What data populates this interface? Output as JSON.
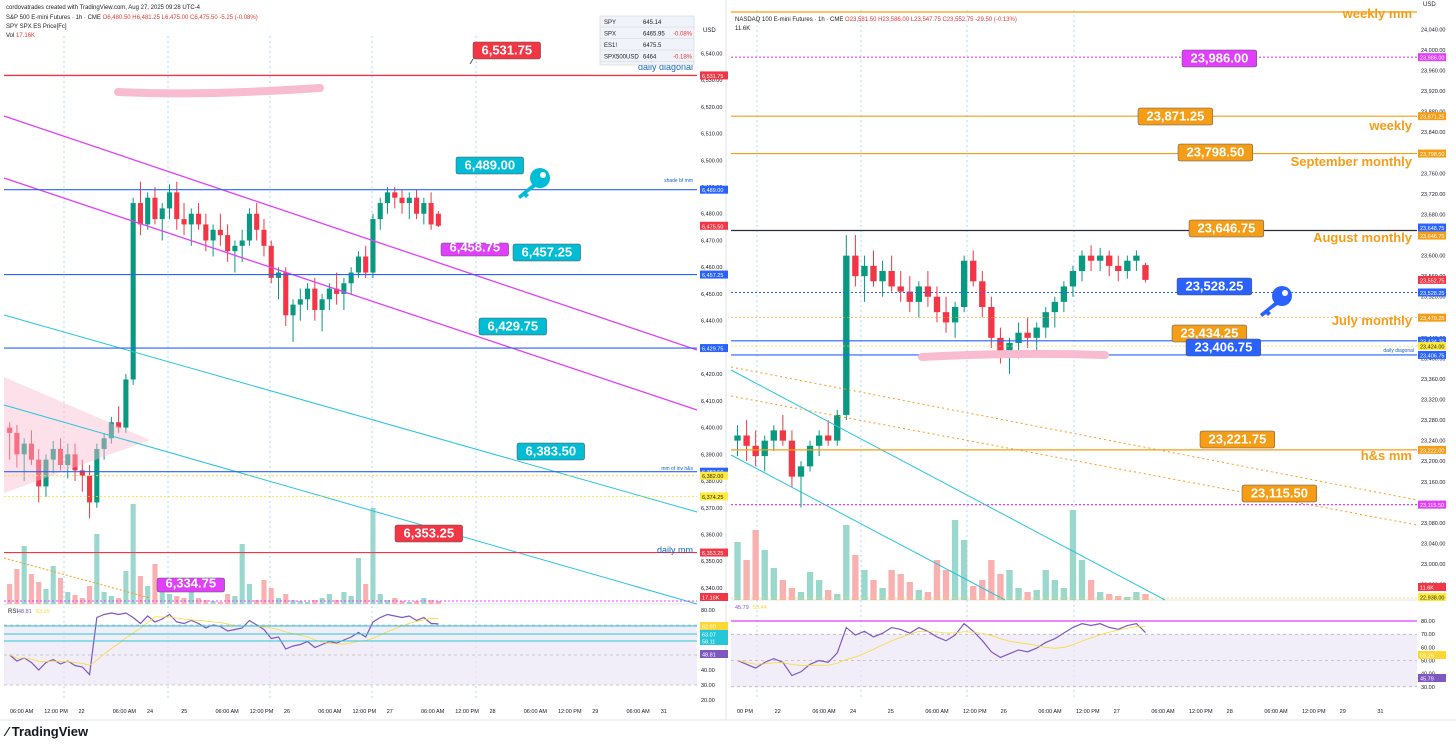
{
  "header": {
    "credit": "cordovatrades created with TradingView.com, Aug 27, 2025 09:28 UTC-4",
    "footer_brand": "TradingView"
  },
  "colors": {
    "magenta": "#e040fb",
    "orange": "#f59d16",
    "blue": "#2962ff",
    "cyan": "#00bcd4",
    "red": "#f23645",
    "up": "#089981",
    "down": "#f23645",
    "rsi": "#7e57c2"
  },
  "left": {
    "title_line1": "S&P 500 E-mini Futures · 1h · CME",
    "ohlc": "O6,480.50 H6,481.25 L6,475.00 C6,475.50 -5.25 (-0.08%)",
    "title_line2": "SPY SPX ES Price[Fc]",
    "vol_label": "Vol",
    "vol_value": "17.16K",
    "watch_table": [
      {
        "sym": "SPY",
        "price": "645.14",
        "chg": ""
      },
      {
        "sym": "SPX",
        "price": "6465.95",
        "chg": "-0.08%"
      },
      {
        "sym": "ES1!",
        "price": "6475.5",
        "chg": ""
      },
      {
        "sym": "SPX500USD",
        "price": "6464",
        "chg": "-0.18%"
      }
    ],
    "price_axis": [
      "6,540.00",
      "6,530.00",
      "6,520.00",
      "6,510.00",
      "6,500.00",
      "6,490.00",
      "6,480.00",
      "6,470.00",
      "6,460.00",
      "6,450.00",
      "6,440.00",
      "6,430.00",
      "6,420.00",
      "6,410.00",
      "6,400.00",
      "6,390.00",
      "6,380.00",
      "6,370.00",
      "6,360.00",
      "6,350.00",
      "6,340.00"
    ],
    "axis_tags": [
      {
        "text": "6,531.75",
        "value": 6531.75,
        "color": "#f23645"
      },
      {
        "text": "6,489.00",
        "value": 6489.0,
        "color": "#2962ff"
      },
      {
        "text": "6,475.50",
        "value": 6475.5,
        "color": "#f23645"
      },
      {
        "text": "6,457.25",
        "value": 6457.25,
        "color": "#2962ff"
      },
      {
        "text": "6,429.75",
        "value": 6429.75,
        "color": "#2962ff"
      },
      {
        "text": "6,383.50",
        "value": 6383.5,
        "color": "#2962ff"
      },
      {
        "text": "6,382.00",
        "value": 6382.0,
        "color": "#ffeb3b"
      },
      {
        "text": "6,374.25",
        "value": 6374.25,
        "color": "#ffeb3b"
      },
      {
        "text": "6,353.25",
        "value": 6353.25,
        "color": "#f23645"
      },
      {
        "text": "17.16K",
        "value": 6334.0,
        "color": "#f23645"
      }
    ],
    "callouts": [
      {
        "text": "6,531.75",
        "value": 6531.75,
        "color": "#f23645"
      },
      {
        "text": "6,489.00",
        "value": 6489.0,
        "color": "#00bcd4"
      },
      {
        "text": "6,458.75",
        "value": 6458.75,
        "color": "#e040fb"
      },
      {
        "text": "6,457.25",
        "value": 6457.25,
        "color": "#00bcd4"
      },
      {
        "text": "6,429.75",
        "value": 6429.75,
        "color": "#00bcd4"
      },
      {
        "text": "6,383.50",
        "value": 6383.5,
        "color": "#00bcd4"
      },
      {
        "text": "6,353.25",
        "value": 6353.25,
        "color": "#f23645"
      },
      {
        "text": "6,334.75",
        "value": 6334.75,
        "color": "#e040fb"
      }
    ],
    "line_labels": {
      "daily_diagonal": "daily diagonal",
      "shade_bf_mm": "shade bf mm",
      "mm_of_inv_hs": "mm of inv h&s",
      "daily_mm": "daily mm"
    },
    "rsi_header": {
      "label": "RSI",
      "v1": "48.81",
      "v2": "53.29"
    },
    "rsi_axis": [
      "80.00",
      "70.00",
      "60.00",
      "50.00",
      "40.00",
      "30.00",
      "20.00"
    ],
    "rsi_tags": [
      "62.90",
      "63.07",
      "58.11",
      "48.81"
    ],
    "time_axis": [
      "06:00 AM",
      "12:00 PM",
      "22",
      "06:00 AM",
      "24",
      "25",
      "06:00 AM",
      "12:00 PM",
      "26",
      "06:00 AM",
      "12:00 PM",
      "27",
      "06:00 AM",
      "12:00 PM",
      "28",
      "06:00 AM",
      "12:00 PM",
      "29",
      "06:00 AM",
      "31"
    ],
    "currency": "USD"
  },
  "right": {
    "title_line1": "NASDAQ 100 E-mini Futures · 1h · CME",
    "ohlc": "O23,581.50 H23,586.00 L23,547.75 C23,552.75 -29.50 (-0.13%)",
    "vol_value": "11.6K",
    "price_axis": [
      "24,040.00",
      "24,000.00",
      "23,960.00",
      "23,920.00",
      "23,880.00",
      "23,840.00",
      "23,800.00",
      "23,760.00",
      "23,720.00",
      "23,680.00",
      "23,640.00",
      "23,600.00",
      "23,560.00",
      "23,520.00",
      "23,480.00",
      "23,440.00",
      "23,400.00",
      "23,360.00",
      "23,320.00",
      "23,280.00",
      "23,240.00",
      "23,200.00",
      "23,160.00",
      "23,120.00",
      "23,080.00",
      "23,040.00",
      "23,000.00",
      "22,960.00"
    ],
    "axis_tags": [
      {
        "text": "23,986.00",
        "value": 23986.0,
        "color": "#e040fb"
      },
      {
        "text": "23,871.25",
        "value": 23871.25,
        "color": "#f59d16"
      },
      {
        "text": "23,798.50",
        "value": 23798.5,
        "color": "#f59d16"
      },
      {
        "text": "23,648.75",
        "value": 23648.75,
        "color": "#2962ff"
      },
      {
        "text": "23,646.75",
        "value": 23646.75,
        "color": "#f59d16"
      },
      {
        "text": "23,552.75",
        "value": 23552.75,
        "color": "#f23645"
      },
      {
        "text": "23,528.25",
        "value": 23528.25,
        "color": "#2962ff"
      },
      {
        "text": "23,479.25",
        "value": 23479.25,
        "color": "#f59d16"
      },
      {
        "text": "23,434.25",
        "value": 23434.25,
        "color": "#2962ff"
      },
      {
        "text": "23,424.00",
        "value": 23424.0,
        "color": "#ffeb3b"
      },
      {
        "text": "23,406.75",
        "value": 23406.75,
        "color": "#2962ff"
      },
      {
        "text": "23,222.00",
        "value": 23222.0,
        "color": "#f59d16"
      },
      {
        "text": "23,115.50",
        "value": 23115.5,
        "color": "#e040fb"
      },
      {
        "text": "11.6K",
        "value": 22968.0,
        "color": "#f23645"
      },
      {
        "text": "22,938.00",
        "value": 22938.0,
        "color": "#ffeb3b"
      }
    ],
    "callouts": [
      {
        "text": "23,986.00",
        "value": 23986.0,
        "color": "#e040fb"
      },
      {
        "text": "23,871.25",
        "value": 23871.25,
        "color": "#f59d16"
      },
      {
        "text": "23,798.50",
        "value": 23798.5,
        "color": "#f59d16"
      },
      {
        "text": "23,646.75",
        "value": 23646.75,
        "color": "#f59d16"
      },
      {
        "text": "23,528.25",
        "value": 23528.25,
        "color": "#2962ff"
      },
      {
        "text": "23,434.25",
        "value": 23434.25,
        "color": "#f59d16"
      },
      {
        "text": "23,406.75",
        "value": 23406.75,
        "color": "#2962ff"
      },
      {
        "text": "23,221.75",
        "value": 23221.75,
        "color": "#f59d16"
      },
      {
        "text": "23,115.50",
        "value": 23115.5,
        "color": "#f59d16"
      }
    ],
    "line_labels": {
      "weekly_mm": "weekly mm",
      "weekly": "weekly",
      "september_monthly": "September monthly",
      "august_monthly": "August monthly",
      "july_monthly": "July monthly",
      "daily_diagonal": "daily diagonal",
      "hs_mm": "h&s mm"
    },
    "rsi_header": {
      "v1": "45.79",
      "v2": "53.44"
    },
    "rsi_axis": [
      "80.00",
      "70.00",
      "60.00",
      "50.00",
      "40.00",
      "30.00"
    ],
    "rsi_tags": [
      "59.26",
      "45.79"
    ],
    "time_axis": [
      "00 PM",
      "22",
      "06:00 AM",
      "24",
      "25",
      "06:00 AM",
      "12:00 PM",
      "26",
      "06:00 AM",
      "12:00 PM",
      "27",
      "06:00 AM",
      "12:00 PM",
      "28",
      "06:00 AM",
      "12:00 PM",
      "29",
      "31"
    ],
    "currency": "USD"
  },
  "chart_data": [
    {
      "type": "candlestick",
      "title": "S&P 500 E-mini Futures · 1h · CME",
      "ylim": [
        6334,
        6545
      ],
      "ohlc": [
        [
          6400,
          6402,
          6388,
          6398
        ],
        [
          6398,
          6401,
          6385,
          6390
        ],
        [
          6390,
          6396,
          6380,
          6394
        ],
        [
          6394,
          6399,
          6386,
          6388
        ],
        [
          6388,
          6392,
          6372,
          6378
        ],
        [
          6378,
          6390,
          6374,
          6388
        ],
        [
          6388,
          6395,
          6383,
          6392
        ],
        [
          6392,
          6396,
          6384,
          6386
        ],
        [
          6386,
          6394,
          6381,
          6390
        ],
        [
          6390,
          6394,
          6380,
          6384
        ],
        [
          6384,
          6388,
          6376,
          6382
        ],
        [
          6382,
          6386,
          6366,
          6372
        ],
        [
          6372,
          6394,
          6370,
          6392
        ],
        [
          6392,
          6398,
          6388,
          6396
        ],
        [
          6396,
          6404,
          6394,
          6402
        ],
        [
          6402,
          6408,
          6398,
          6400
        ],
        [
          6400,
          6420,
          6398,
          6418
        ],
        [
          6418,
          6486,
          6416,
          6484
        ],
        [
          6484,
          6492,
          6472,
          6476
        ],
        [
          6476,
          6488,
          6474,
          6486
        ],
        [
          6486,
          6490,
          6476,
          6478
        ],
        [
          6478,
          6484,
          6470,
          6482
        ],
        [
          6482,
          6491,
          6478,
          6488
        ],
        [
          6488,
          6492,
          6474,
          6478
        ],
        [
          6478,
          6484,
          6472,
          6476
        ],
        [
          6476,
          6482,
          6468,
          6480
        ],
        [
          6480,
          6484,
          6474,
          6476
        ],
        [
          6476,
          6480,
          6466,
          6470
        ],
        [
          6470,
          6476,
          6464,
          6474
        ],
        [
          6474,
          6480,
          6468,
          6472
        ],
        [
          6472,
          6476,
          6462,
          6466
        ],
        [
          6466,
          6470,
          6458,
          6468
        ],
        [
          6468,
          6474,
          6462,
          6470
        ],
        [
          6470,
          6482,
          6468,
          6480
        ],
        [
          6480,
          6484,
          6470,
          6474
        ],
        [
          6474,
          6478,
          6464,
          6468
        ],
        [
          6468,
          6470,
          6454,
          6456
        ],
        [
          6456,
          6460,
          6448,
          6458
        ],
        [
          6458,
          6460,
          6438,
          6442
        ],
        [
          6442,
          6448,
          6432,
          6446
        ],
        [
          6446,
          6452,
          6440,
          6448
        ],
        [
          6448,
          6454,
          6444,
          6452
        ],
        [
          6452,
          6456,
          6440,
          6444
        ],
        [
          6444,
          6450,
          6436,
          6448
        ],
        [
          6448,
          6454,
          6444,
          6452
        ],
        [
          6452,
          6458,
          6446,
          6450
        ],
        [
          6450,
          6456,
          6444,
          6454
        ],
        [
          6454,
          6460,
          6450,
          6458
        ],
        [
          6458,
          6466,
          6456,
          6464
        ],
        [
          6464,
          6468,
          6456,
          6458
        ],
        [
          6458,
          6480,
          6456,
          6478
        ],
        [
          6478,
          6486,
          6474,
          6484
        ],
        [
          6484,
          6490,
          6480,
          6488
        ],
        [
          6488,
          6490,
          6482,
          6486
        ],
        [
          6486,
          6489,
          6480,
          6484
        ],
        [
          6484,
          6488,
          6478,
          6486
        ],
        [
          6486,
          6489,
          6478,
          6480
        ],
        [
          6480,
          6486,
          6476,
          6484
        ],
        [
          6484,
          6488,
          6474,
          6476
        ],
        [
          6480,
          6481,
          6475,
          6475.5
        ]
      ],
      "levels": [
        6531.75,
        6489.0,
        6457.25,
        6429.75,
        6383.5,
        6353.25,
        6334.75
      ],
      "rsi_ylim": [
        20,
        80
      ]
    },
    {
      "type": "candlestick",
      "title": "NASDAQ 100 E-mini Futures · 1h · CME",
      "ylim": [
        22930,
        24070
      ],
      "ohlc": [
        [
          23240,
          23270,
          23210,
          23250
        ],
        [
          23250,
          23280,
          23200,
          23230
        ],
        [
          23230,
          23260,
          23190,
          23210
        ],
        [
          23210,
          23250,
          23180,
          23240
        ],
        [
          23240,
          23270,
          23220,
          23260
        ],
        [
          23260,
          23290,
          23230,
          23240
        ],
        [
          23240,
          23260,
          23150,
          23170
        ],
        [
          23170,
          23200,
          23110,
          23190
        ],
        [
          23190,
          23240,
          23180,
          23230
        ],
        [
          23230,
          23260,
          23210,
          23250
        ],
        [
          23250,
          23280,
          23230,
          23240
        ],
        [
          23240,
          23300,
          23230,
          23290
        ],
        [
          23290,
          23640,
          23280,
          23600
        ],
        [
          23600,
          23640,
          23540,
          23560
        ],
        [
          23560,
          23600,
          23510,
          23580
        ],
        [
          23580,
          23610,
          23540,
          23550
        ],
        [
          23550,
          23590,
          23520,
          23570
        ],
        [
          23570,
          23600,
          23530,
          23540
        ],
        [
          23540,
          23570,
          23510,
          23530
        ],
        [
          23530,
          23560,
          23490,
          23510
        ],
        [
          23510,
          23550,
          23480,
          23540
        ],
        [
          23540,
          23570,
          23500,
          23520
        ],
        [
          23520,
          23540,
          23470,
          23490
        ],
        [
          23490,
          23520,
          23450,
          23470
        ],
        [
          23470,
          23510,
          23440,
          23500
        ],
        [
          23500,
          23600,
          23490,
          23590
        ],
        [
          23590,
          23610,
          23540,
          23550
        ],
        [
          23550,
          23570,
          23480,
          23500
        ],
        [
          23500,
          23520,
          23420,
          23440
        ],
        [
          23440,
          23460,
          23390,
          23410
        ],
        [
          23410,
          23440,
          23370,
          23430
        ],
        [
          23430,
          23470,
          23400,
          23450
        ],
        [
          23450,
          23480,
          23420,
          23440
        ],
        [
          23440,
          23470,
          23410,
          23460
        ],
        [
          23460,
          23500,
          23440,
          23490
        ],
        [
          23490,
          23520,
          23460,
          23510
        ],
        [
          23510,
          23550,
          23490,
          23540
        ],
        [
          23540,
          23580,
          23520,
          23570
        ],
        [
          23570,
          23610,
          23550,
          23600
        ],
        [
          23600,
          23620,
          23570,
          23590
        ],
        [
          23590,
          23615,
          23570,
          23600
        ],
        [
          23600,
          23610,
          23560,
          23580
        ],
        [
          23580,
          23600,
          23550,
          23570
        ],
        [
          23570,
          23600,
          23555,
          23590
        ],
        [
          23590,
          23610,
          23570,
          23600
        ],
        [
          23581.5,
          23586,
          23547.75,
          23552.75
        ]
      ],
      "levels": [
        23986.0,
        23871.25,
        23798.5,
        23646.75,
        23528.25,
        23434.25,
        23406.75,
        23221.75,
        23115.5
      ],
      "rsi_ylim": [
        20,
        80
      ]
    }
  ]
}
